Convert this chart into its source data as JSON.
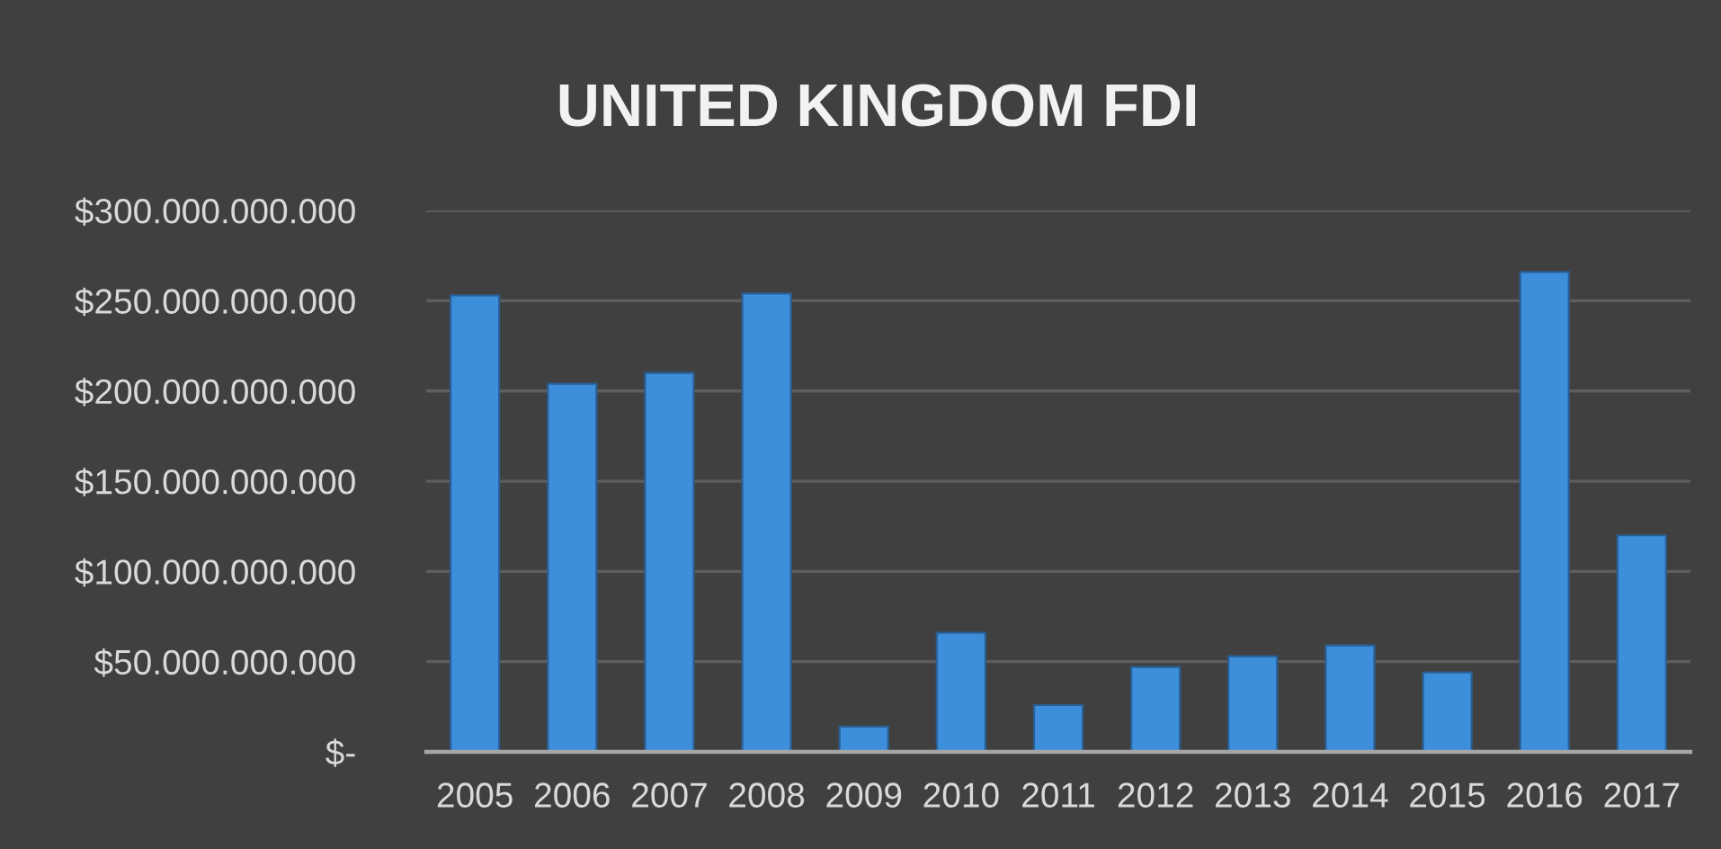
{
  "chart_data": {
    "type": "bar",
    "title": "UNITED KINGDOM FDI",
    "categories": [
      "2005",
      "2006",
      "2007",
      "2008",
      "2009",
      "2010",
      "2011",
      "2012",
      "2013",
      "2014",
      "2015",
      "2016",
      "2017"
    ],
    "values": [
      253000000000,
      204000000000,
      210000000000,
      254000000000,
      14000000000,
      66000000000,
      26000000000,
      47000000000,
      53000000000,
      59000000000,
      44000000000,
      266000000000,
      120000000000
    ],
    "color": "#3d8edb",
    "ylim": [
      0,
      300000000000
    ],
    "yticks": [
      {
        "value": 0,
        "label": "$-"
      },
      {
        "value": 50000000000,
        "label": "$50.000.000.000"
      },
      {
        "value": 100000000000,
        "label": "$100.000.000.000"
      },
      {
        "value": 150000000000,
        "label": "$150.000.000.000"
      },
      {
        "value": 200000000000,
        "label": "$200.000.000.000"
      },
      {
        "value": 250000000000,
        "label": "$250.000.000.000"
      },
      {
        "value": 300000000000,
        "label": "$300.000.000.000"
      }
    ],
    "grid": "y"
  }
}
